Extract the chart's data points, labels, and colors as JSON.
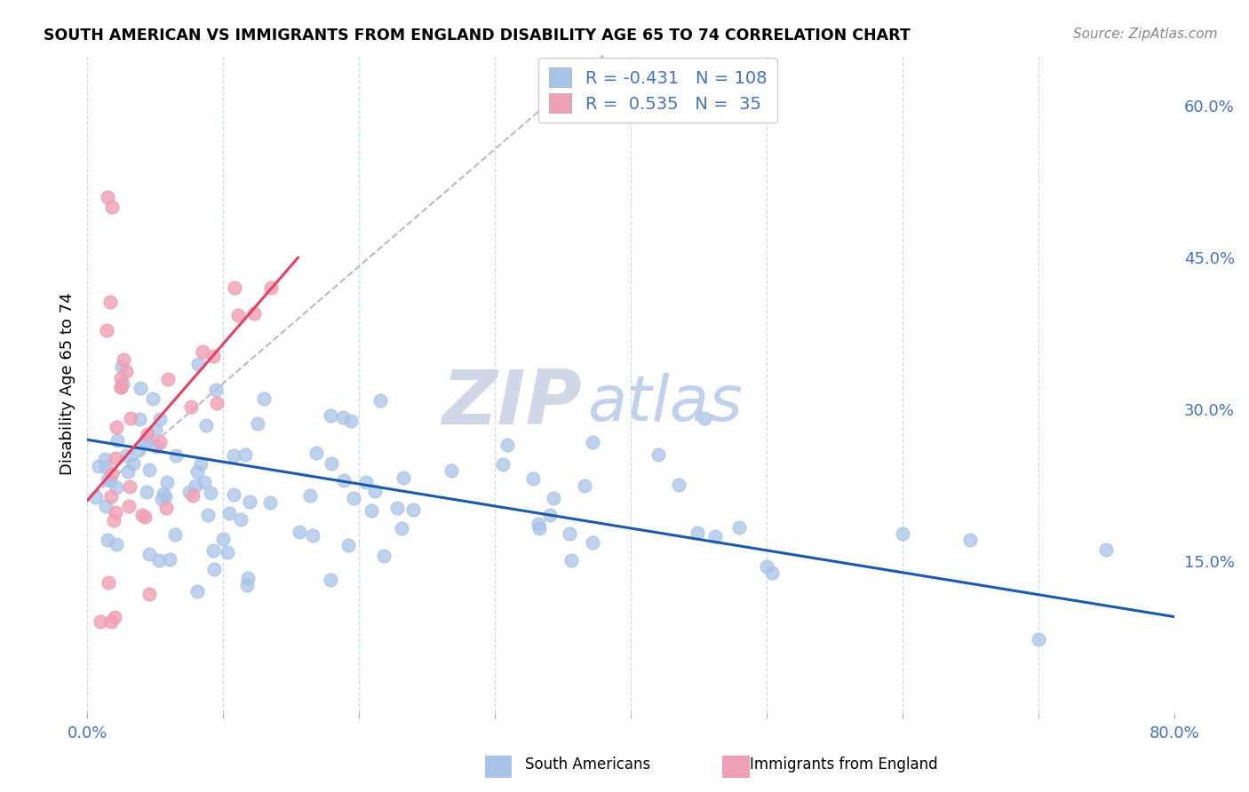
{
  "title": "SOUTH AMERICAN VS IMMIGRANTS FROM ENGLAND DISABILITY AGE 65 TO 74 CORRELATION CHART",
  "source": "Source: ZipAtlas.com",
  "ylabel": "Disability Age 65 to 74",
  "xlim": [
    0.0,
    0.8
  ],
  "ylim": [
    0.0,
    0.65
  ],
  "blue_R": -0.431,
  "blue_N": 108,
  "pink_R": 0.535,
  "pink_N": 35,
  "blue_color": "#a8c4e8",
  "pink_color": "#f0a0b5",
  "blue_line_color": "#1a5aad",
  "pink_line_color": "#e84060",
  "grid_color": "#c8d4e8",
  "blue_trend_x0": 0.0,
  "blue_trend_y0": 0.27,
  "blue_trend_x1": 0.8,
  "blue_trend_y1": 0.095,
  "pink_trend_x0": 0.0,
  "pink_trend_y0": 0.21,
  "pink_trend_x1": 0.155,
  "pink_trend_y1": 0.45,
  "dash_trend_x0": 0.0,
  "dash_trend_y0": 0.21,
  "dash_trend_x1": 0.38,
  "dash_trend_y1": 0.65,
  "watermark_zip": "ZIP",
  "watermark_atlas": "atlas",
  "legend_blue_text": "R = -0.431   N = 108",
  "legend_pink_text": "R =  0.535   N =  35",
  "bottom_legend_blue": "South Americans",
  "bottom_legend_pink": "Immigrants from England"
}
